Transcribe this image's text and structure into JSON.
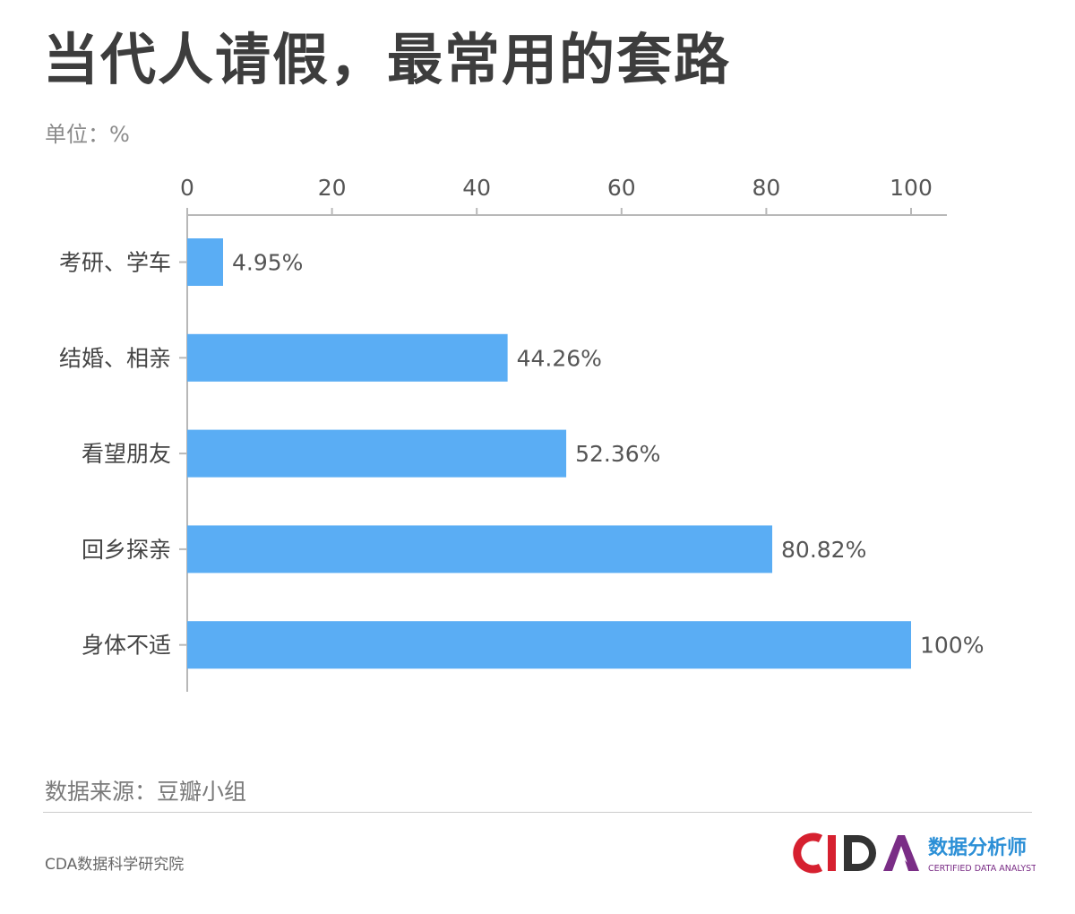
{
  "header": {
    "title": "当代人请假，最常用的套路",
    "unit": "单位：%"
  },
  "footer": {
    "source": "数据来源：豆瓣小组",
    "org": "CDA数据科学研究院",
    "logo": {
      "mark": "CDA",
      "cn": "数据分析师",
      "en": "CERTIFIED DATA ANALYST",
      "colors": {
        "c": "#d6202f",
        "d": "#333333",
        "a": "#7a2d86",
        "cn": "#2b8fd6"
      }
    }
  },
  "colors": {
    "bar": "#5aadf4",
    "axis": "#b8b8b8"
  },
  "chart_data": {
    "type": "bar",
    "orientation": "horizontal",
    "categories": [
      "考研、学车",
      "结婚、相亲",
      "看望朋友",
      "回乡探亲",
      "身体不适"
    ],
    "values": [
      4.95,
      44.26,
      52.36,
      80.82,
      100
    ],
    "data_labels": [
      "4.95%",
      "44.26%",
      "52.36%",
      "80.82%",
      "100%"
    ],
    "xlim": [
      0,
      100
    ],
    "x_ticks": [
      0,
      20,
      40,
      60,
      80,
      100
    ],
    "x_axis_position": "top",
    "grid": false,
    "legend": "none"
  }
}
